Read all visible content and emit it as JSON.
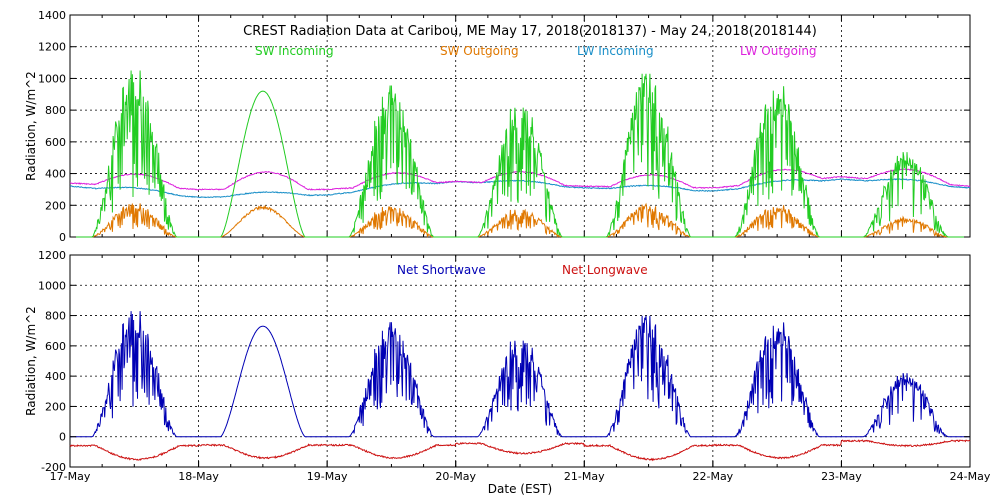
{
  "colors": {
    "sw_in": "#22cc22",
    "sw_out": "#e07800",
    "lw_in": "#1a8fc8",
    "lw_out": "#dd22dd",
    "net_sw": "#0000b4",
    "net_lw": "#cc1111"
  },
  "chart_data": [
    {
      "type": "line",
      "title": "CREST Radiation Data at Caribou, ME    May 17, 2018(2018137) - May 24, 2018(2018144)",
      "xlabel": "",
      "ylabel": "Radiation, W/m^2",
      "xlim": [
        "2018-05-17",
        "2018-05-24"
      ],
      "ylim": [
        0,
        1400
      ],
      "yticks": [
        0,
        200,
        400,
        600,
        800,
        1000,
        1200,
        1400
      ],
      "xticks": [
        "17-May",
        "18-May",
        "19-May",
        "20-May",
        "21-May",
        "22-May",
        "23-May",
        "24-May"
      ],
      "grid": true,
      "legend": "top",
      "series": [
        {
          "name": "SW Incoming",
          "color_key": "sw_in",
          "daily_peaks": [
            1000,
            920,
            910,
            810,
            980,
            920,
            510
          ],
          "daily_pattern": "clear-sky diurnal curves; cloudy spiky days on May 17, 19, 20, 21, 22, 23"
        },
        {
          "name": "SW Outgoing",
          "color_key": "sw_out",
          "daily_peaks": [
            210,
            195,
            195,
            175,
            200,
            195,
            120
          ]
        },
        {
          "name": "LW Incoming",
          "color_key": "lw_in",
          "approx_range": [
            230,
            370
          ],
          "key_points": [
            [
              "2018-05-17",
              320
            ],
            [
              "2018-05-18",
              250
            ],
            [
              "2018-05-19",
              265
            ],
            [
              "2018-05-20",
              350
            ],
            [
              "2018-05-21",
              310
            ],
            [
              "2018-05-22",
              290
            ],
            [
              "2018-05-23",
              365
            ],
            [
              "2018-05-24",
              310
            ]
          ]
        },
        {
          "name": "LW Outgoing",
          "color_key": "lw_out",
          "approx_range": [
            290,
            480
          ],
          "key_points": [
            [
              "2018-05-17",
              340
            ],
            [
              "2018-05-18",
              300
            ],
            [
              "2018-05-19",
              300
            ],
            [
              "2018-05-20",
              350
            ],
            [
              "2018-05-21",
              320
            ],
            [
              "2018-05-22",
              310
            ],
            [
              "2018-05-23",
              380
            ],
            [
              "2018-05-24",
              320
            ]
          ]
        }
      ]
    },
    {
      "type": "line",
      "title": "",
      "xlabel": "Date (EST)",
      "ylabel": "Radiation, W/m^2",
      "xlim": [
        "2018-05-17",
        "2018-05-24"
      ],
      "ylim": [
        -200,
        1200
      ],
      "yticks": [
        -200,
        0,
        200,
        400,
        600,
        800,
        1000,
        1200
      ],
      "xticks": [
        "17-May",
        "18-May",
        "19-May",
        "20-May",
        "21-May",
        "22-May",
        "23-May",
        "24-May"
      ],
      "grid": true,
      "legend": "top",
      "series": [
        {
          "name": "Net Shortwave",
          "color_key": "net_sw",
          "daily_peaks": [
            790,
            730,
            720,
            630,
            760,
            730,
            400
          ]
        },
        {
          "name": "Net Longwave",
          "color_key": "net_lw",
          "approx_range": [
            -150,
            -10
          ],
          "daily_minima": [
            -150,
            -140,
            -140,
            -110,
            -150,
            -140,
            -60
          ]
        }
      ]
    }
  ]
}
